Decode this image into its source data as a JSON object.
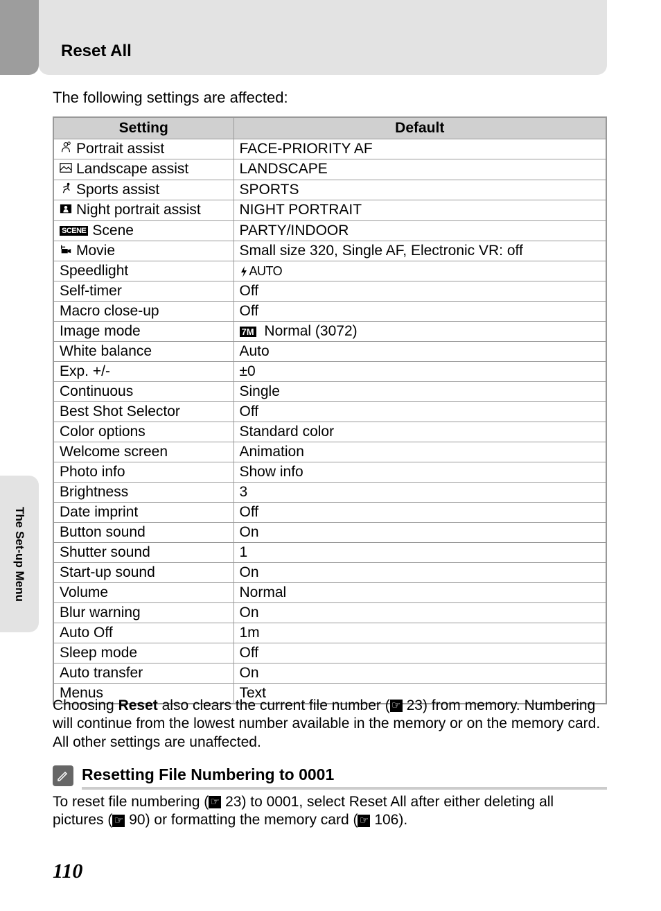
{
  "header": {
    "title": "Reset All"
  },
  "intro": "The following settings are affected:",
  "table": {
    "headers": [
      "Setting",
      "Default"
    ]
  },
  "rows": [
    {
      "icon": "portrait",
      "setting": "Portrait assist",
      "default": "FACE-PRIORITY AF"
    },
    {
      "icon": "landscape",
      "setting": "Landscape assist",
      "default": "LANDSCAPE"
    },
    {
      "icon": "sports",
      "setting": "Sports assist",
      "default": "SPORTS"
    },
    {
      "icon": "night-portrait",
      "setting": "Night portrait assist",
      "default": "NIGHT PORTRAIT"
    },
    {
      "icon": "scene",
      "setting": "Scene",
      "default": "PARTY/INDOOR"
    },
    {
      "icon": "movie",
      "setting": "Movie",
      "default": "Small size 320, Single AF, Electronic VR: off"
    },
    {
      "icon": "",
      "setting": "Speedlight",
      "default_icon": "flash-auto",
      "default": ""
    },
    {
      "icon": "",
      "setting": "Self-timer",
      "default": "Off"
    },
    {
      "icon": "",
      "setting": "Macro close-up",
      "default": "Off"
    },
    {
      "icon": "",
      "setting": "Image mode",
      "default_icon": "7m",
      "default": "Normal (3072)"
    },
    {
      "icon": "",
      "setting": "White balance",
      "default": "Auto"
    },
    {
      "icon": "",
      "setting": "Exp. +/-",
      "default": "±0"
    },
    {
      "icon": "",
      "setting": "Continuous",
      "default": "Single"
    },
    {
      "icon": "",
      "setting": "Best Shot Selector",
      "default": "Off"
    },
    {
      "icon": "",
      "setting": "Color options",
      "default": "Standard color"
    },
    {
      "icon": "",
      "setting": "Welcome screen",
      "default": "Animation"
    },
    {
      "icon": "",
      "setting": "Photo info",
      "default": "Show info"
    },
    {
      "icon": "",
      "setting": "Brightness",
      "default": "3"
    },
    {
      "icon": "",
      "setting": "Date imprint",
      "default": "Off"
    },
    {
      "icon": "",
      "setting": "Button sound",
      "default": "On"
    },
    {
      "icon": "",
      "setting": "Shutter sound",
      "default": "1"
    },
    {
      "icon": "",
      "setting": "Start-up sound",
      "default": "On"
    },
    {
      "icon": "",
      "setting": "Volume",
      "default": "Normal"
    },
    {
      "icon": "",
      "setting": "Blur warning",
      "default": "On"
    },
    {
      "icon": "",
      "setting": "Auto Off",
      "default": "1m"
    },
    {
      "icon": "",
      "setting": "Sleep mode",
      "default": "Off"
    },
    {
      "icon": "",
      "setting": "Auto transfer",
      "default": "On"
    },
    {
      "icon": "",
      "setting": "Menus",
      "default": "Text"
    }
  ],
  "body": {
    "part1": "Choosing ",
    "bold1": "Reset",
    "part2": " also clears the current file number (",
    "ref1": "23",
    "part3": ") from memory. Numbering will continue from the lowest number available in the memory or on the memory card. All other settings are unaffected."
  },
  "section": {
    "title": "Resetting File Numbering to 0001",
    "part1": "To reset file numbering (",
    "ref1": "23",
    "part2": ") to 0001, select ",
    "bold1": "Reset All",
    "part3": " after either deleting all pictures (",
    "ref2": "90",
    "part4": ") or formatting the memory card (",
    "ref3": "106",
    "part5": ")."
  },
  "sidebar": "The Set-up Menu",
  "page_number": "110",
  "icon_labels": {
    "scene": "SCENE",
    "7m": "7M",
    "flash_auto": "AUTO"
  },
  "colors": {
    "tab_gray": "#9d9d9d",
    "header_bg": "#e3e3e3",
    "table_header_bg": "#d0d0d0",
    "border": "#999999",
    "side_tab_bg": "#e3e3e3",
    "section_icon_bg": "#666666",
    "underline": "#cccccc"
  }
}
